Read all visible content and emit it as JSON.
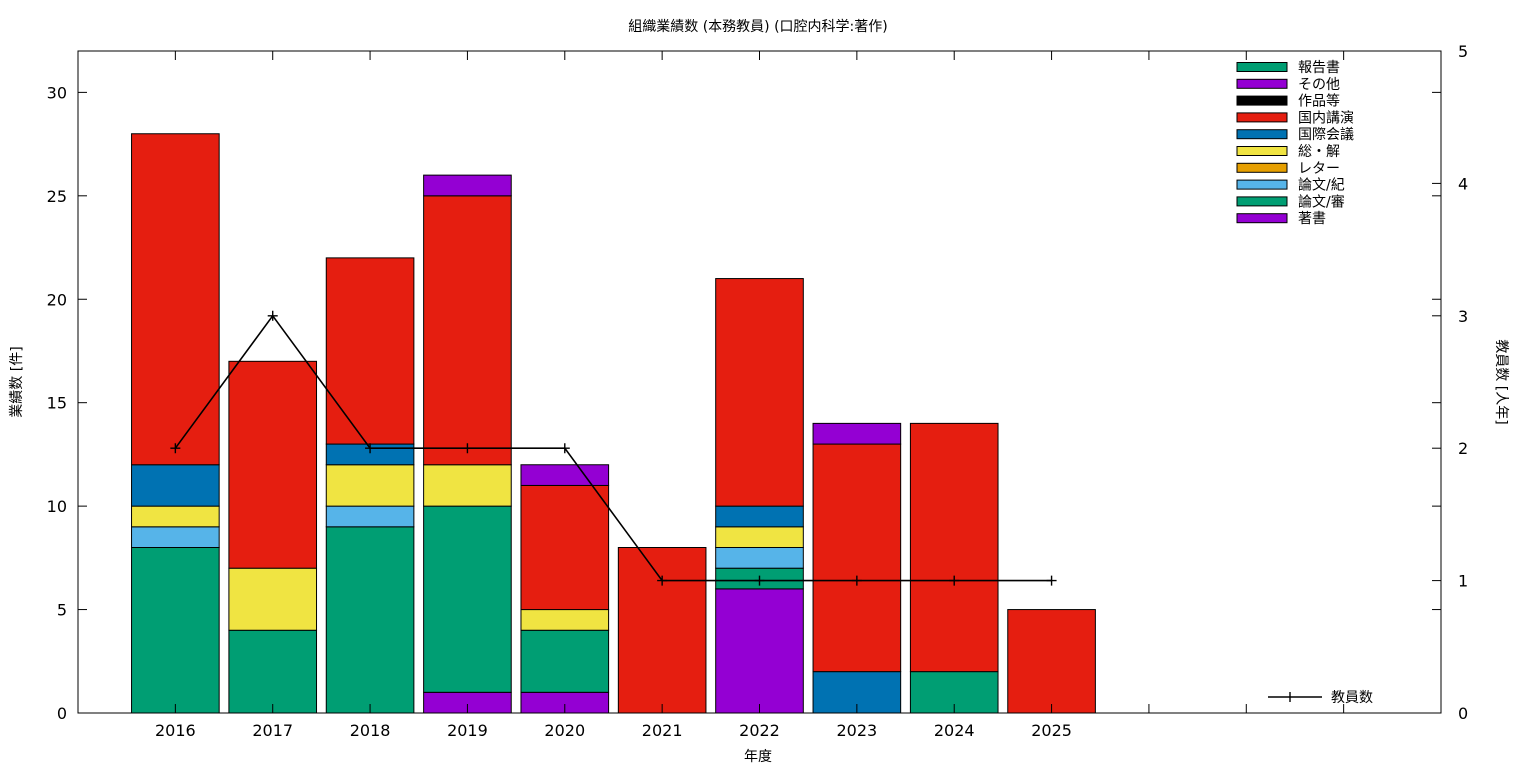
{
  "chart_data": {
    "type": "bar",
    "title": "組織業績数 (本務教員) (口腔内科学:著作)",
    "xlabel": "年度",
    "ylabel": "業績数 [件]",
    "y2label": "教員数 [人年]",
    "categories": [
      "2016",
      "2017",
      "2018",
      "2019",
      "2020",
      "2021",
      "2022",
      "2023",
      "2024",
      "2025"
    ],
    "xlim": [
      2015,
      2029
    ],
    "ylim": [
      0,
      32
    ],
    "y2lim": [
      0,
      5
    ],
    "yticks": [
      0,
      5,
      10,
      15,
      20,
      25,
      30
    ],
    "y2ticks": [
      0,
      1,
      2,
      3,
      4,
      5
    ],
    "stacked": true,
    "legend_position": "top-right",
    "series": [
      {
        "name": "著書",
        "color": "#9400d3",
        "values": [
          0,
          0,
          0,
          1,
          1,
          0,
          6,
          0,
          0,
          0
        ]
      },
      {
        "name": "論文/審",
        "color": "#009e73",
        "values": [
          8,
          4,
          9,
          9,
          3,
          0,
          1,
          0,
          2,
          0
        ]
      },
      {
        "name": "論文/紀",
        "color": "#56b4e9",
        "values": [
          1,
          0,
          1,
          0,
          0,
          0,
          1,
          0,
          0,
          0
        ]
      },
      {
        "name": "レター",
        "color": "#e69f00",
        "values": [
          0,
          0,
          0,
          0,
          0,
          0,
          0,
          0,
          0,
          0
        ]
      },
      {
        "name": "総・解",
        "color": "#f0e442",
        "values": [
          1,
          3,
          2,
          2,
          1,
          0,
          1,
          0,
          0,
          0
        ]
      },
      {
        "name": "国際会議",
        "color": "#0072b2",
        "values": [
          2,
          0,
          1,
          0,
          0,
          0,
          1,
          2,
          0,
          0
        ]
      },
      {
        "name": "国内講演",
        "color": "#e51e10",
        "values": [
          16,
          10,
          9,
          13,
          6,
          8,
          11,
          11,
          12,
          5
        ]
      },
      {
        "name": "作品等",
        "color": "#000000",
        "values": [
          0,
          0,
          0,
          0,
          0,
          0,
          0,
          0,
          0,
          0
        ]
      },
      {
        "name": "その他",
        "color": "#9400d3",
        "values": [
          0,
          0,
          0,
          1,
          1,
          0,
          0,
          1,
          0,
          0
        ]
      },
      {
        "name": "報告書",
        "color": "#009e73",
        "values": [
          0,
          0,
          0,
          0,
          0,
          0,
          0,
          0,
          0,
          0
        ]
      }
    ],
    "line": {
      "name": "教員数",
      "color": "#000000",
      "axis": "right",
      "values": [
        2,
        3,
        2,
        2,
        2,
        1,
        1,
        1,
        1,
        1
      ]
    }
  }
}
